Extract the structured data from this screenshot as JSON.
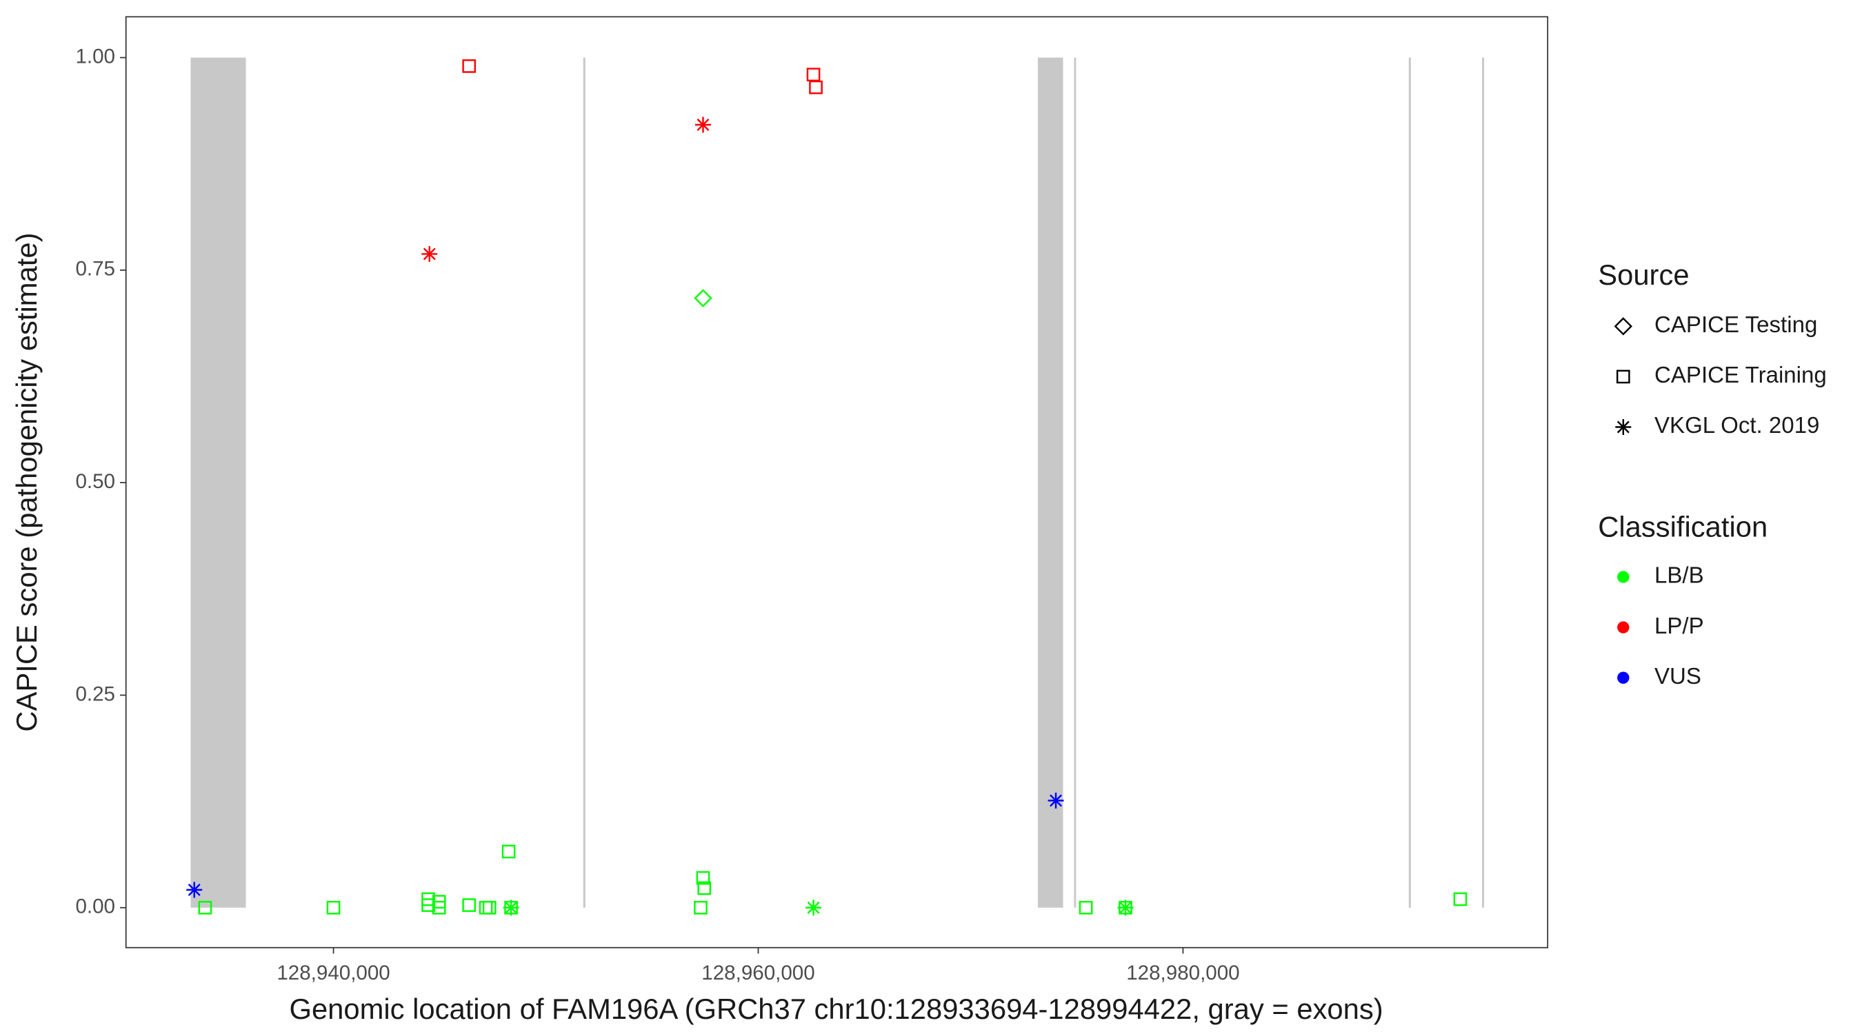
{
  "chart_data": {
    "type": "scatter",
    "xlabel": "Genomic location of FAM196A (GRCh37 chr10:128933694-128994422, gray = exons)",
    "ylabel": "CAPICE score (pathogenicity estimate)",
    "xlim": [
      128930230,
      128997170
    ],
    "ylim": [
      -0.047,
      1.048
    ],
    "xticks": [
      {
        "value": 128940000,
        "label": "128,940,000"
      },
      {
        "value": 128960000,
        "label": "128,960,000"
      },
      {
        "value": 128980000,
        "label": "128,980,000"
      }
    ],
    "yticks": [
      {
        "value": 0,
        "label": "0.00"
      },
      {
        "value": 0.25,
        "label": "0.25"
      },
      {
        "value": 0.5,
        "label": "0.50"
      },
      {
        "value": 0.75,
        "label": "0.75"
      },
      {
        "value": 1,
        "label": "1.00"
      }
    ],
    "exon_color": "#c8c8c8",
    "exons": [
      [
        128933276,
        128935875
      ],
      [
        128951760,
        128951860
      ],
      [
        128973165,
        128974352
      ],
      [
        128974870,
        128974965
      ],
      [
        128990630,
        128990730
      ],
      [
        128994080,
        128994175
      ]
    ],
    "legend": {
      "source_title": "Source",
      "sources": [
        {
          "name": "CAPICE Testing",
          "shape": "diamond"
        },
        {
          "name": "CAPICE Training",
          "shape": "square"
        },
        {
          "name": "VKGL Oct. 2019",
          "shape": "star"
        }
      ],
      "classification_title": "Classification",
      "classifications": [
        {
          "name": "LB/B",
          "color": "#00ff00"
        },
        {
          "name": "LP/P",
          "color": "#ff0000"
        },
        {
          "name": "VUS",
          "color": "#0000ff"
        }
      ]
    },
    "series": [
      {
        "source": 2,
        "classification": 2,
        "x": [
          128933446,
          128974013
        ],
        "values": [
          0.021,
          0.126
        ]
      },
      {
        "source": 2,
        "classification": 1,
        "x": [
          128944520,
          128957402
        ],
        "values": [
          0.769,
          0.921
        ]
      },
      {
        "source": 1,
        "classification": 1,
        "x": [
          128946385,
          128962600,
          128962713
        ],
        "values": [
          0.99,
          0.98,
          0.965
        ]
      },
      {
        "source": 0,
        "classification": 0,
        "x": [
          128957402
        ],
        "values": [
          0.717
        ]
      },
      {
        "source": 2,
        "classification": 0,
        "x": [
          128962600,
          128948362,
          128977290
        ],
        "values": [
          0,
          0,
          0
        ]
      },
      {
        "source": 1,
        "classification": 0,
        "x": [
          128933955,
          128940000,
          128944464,
          128944464,
          128944972,
          128944972,
          128946385,
          128947176,
          128947345,
          128948249,
          128948362,
          128957289,
          128957402,
          128957459,
          128975426,
          128977290,
          128993054
        ],
        "values": [
          0,
          0,
          0.01,
          0.003,
          0.007,
          0,
          0.003,
          0,
          0,
          0.066,
          0,
          0,
          0.035,
          0.023,
          0,
          0,
          0.01
        ]
      }
    ]
  }
}
